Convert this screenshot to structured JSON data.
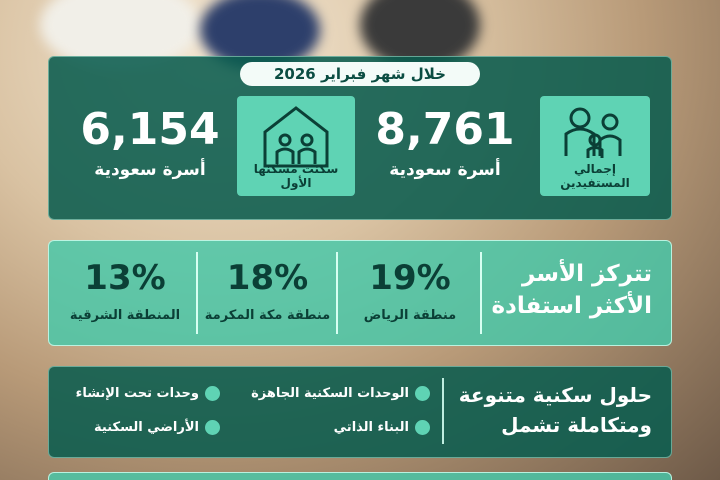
{
  "header": {
    "period": "خلال شهر فبراير 2026"
  },
  "stats": [
    {
      "label": "إجمالي المستفيدين",
      "value": "8,761",
      "unit": "أسرة سعودية"
    },
    {
      "label": "سكنت مسكنها الأول",
      "value": "6,154",
      "unit": "أسرة سعودية"
    }
  ],
  "regions": {
    "title": "تتركز الأسر الأكثر استفادة",
    "items": [
      {
        "share": "19%",
        "name": "منطقة الرياض"
      },
      {
        "share": "18%",
        "name": "منطقة مكة المكرمة"
      },
      {
        "share": "13%",
        "name": "المنطقة الشرقية"
      }
    ]
  },
  "solutions": {
    "title": "حلول سكنية متنوعة ومتكاملة تشمل",
    "items": [
      "الوحدات السكنية الجاهزة",
      "وحدات تحت الإنشاء",
      "البناء الذاتي",
      "الأراضي السكنية"
    ]
  }
}
